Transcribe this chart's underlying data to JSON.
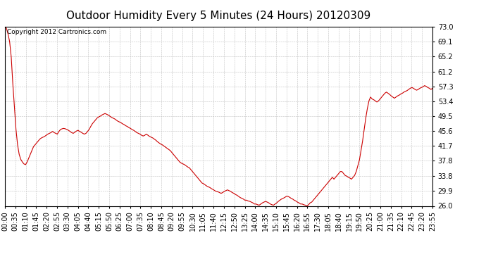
{
  "title": "Outdoor Humidity Every 5 Minutes (24 Hours) 20120309",
  "copyright_text": "Copyright 2012 Cartronics.com",
  "line_color": "#cc0000",
  "background_color": "#ffffff",
  "plot_bg_color": "#ffffff",
  "grid_color": "#c0c0c0",
  "yticks": [
    26.0,
    29.9,
    33.8,
    37.8,
    41.7,
    45.6,
    49.5,
    53.4,
    57.3,
    61.2,
    65.2,
    69.1,
    73.0
  ],
  "ymin": 26.0,
  "ymax": 73.0,
  "title_fontsize": 11,
  "copyright_fontsize": 6.5,
  "tick_label_fontsize": 7,
  "humidity_data": [
    73.0,
    72.5,
    71.0,
    69.0,
    65.0,
    58.0,
    52.0,
    46.0,
    42.0,
    39.5,
    38.2,
    37.5,
    37.0,
    36.8,
    37.5,
    38.5,
    39.5,
    40.5,
    41.5,
    42.0,
    42.5,
    43.0,
    43.5,
    43.8,
    44.0,
    44.2,
    44.5,
    44.8,
    45.0,
    45.2,
    45.5,
    45.2,
    45.0,
    44.8,
    45.5,
    46.0,
    46.2,
    46.3,
    46.2,
    46.0,
    45.8,
    45.5,
    45.2,
    45.0,
    45.3,
    45.6,
    45.8,
    45.5,
    45.3,
    45.0,
    44.8,
    45.0,
    45.5,
    46.0,
    46.8,
    47.5,
    48.0,
    48.5,
    49.0,
    49.3,
    49.5,
    49.8,
    50.0,
    50.2,
    50.0,
    49.8,
    49.5,
    49.2,
    49.0,
    48.8,
    48.5,
    48.2,
    48.0,
    47.8,
    47.5,
    47.3,
    47.0,
    46.8,
    46.5,
    46.3,
    46.0,
    45.8,
    45.5,
    45.2,
    45.0,
    44.8,
    44.5,
    44.3,
    44.5,
    44.8,
    44.5,
    44.2,
    44.0,
    43.8,
    43.5,
    43.2,
    42.8,
    42.5,
    42.2,
    42.0,
    41.7,
    41.4,
    41.1,
    40.8,
    40.5,
    40.0,
    39.5,
    39.0,
    38.5,
    38.0,
    37.5,
    37.2,
    37.0,
    36.8,
    36.5,
    36.2,
    36.0,
    35.5,
    35.0,
    34.5,
    34.0,
    33.5,
    33.0,
    32.5,
    32.0,
    31.8,
    31.5,
    31.2,
    31.0,
    30.8,
    30.5,
    30.3,
    30.0,
    29.8,
    29.7,
    29.5,
    29.3,
    29.5,
    29.8,
    30.0,
    30.2,
    30.0,
    29.8,
    29.5,
    29.3,
    29.0,
    28.8,
    28.5,
    28.2,
    28.0,
    27.8,
    27.5,
    27.5,
    27.3,
    27.2,
    27.0,
    26.8,
    26.5,
    26.5,
    26.3,
    26.2,
    26.5,
    26.8,
    27.0,
    27.2,
    27.0,
    26.8,
    26.5,
    26.3,
    26.2,
    26.5,
    26.8,
    27.2,
    27.5,
    27.8,
    28.0,
    28.2,
    28.5,
    28.5,
    28.3,
    28.0,
    27.8,
    27.5,
    27.3,
    27.0,
    26.8,
    26.5,
    26.5,
    26.3,
    26.2,
    26.0,
    26.3,
    26.8,
    27.0,
    27.5,
    28.0,
    28.5,
    29.0,
    29.5,
    30.0,
    30.5,
    31.0,
    31.5,
    32.0,
    32.5,
    33.0,
    33.5,
    33.0,
    33.5,
    34.0,
    34.5,
    35.0,
    35.0,
    34.5,
    34.0,
    33.8,
    33.5,
    33.3,
    33.0,
    33.5,
    34.0,
    35.0,
    36.5,
    38.0,
    40.5,
    43.0,
    46.0,
    49.0,
    51.5,
    53.5,
    54.5,
    54.0,
    53.8,
    53.5,
    53.2,
    53.5,
    54.0,
    54.5,
    55.0,
    55.5,
    55.8,
    55.5,
    55.2,
    54.8,
    54.5,
    54.2,
    54.5,
    54.8,
    55.0,
    55.3,
    55.5,
    55.8,
    56.0,
    56.2,
    56.5,
    56.8,
    57.0,
    56.8,
    56.5,
    56.3,
    56.5,
    56.8,
    57.0,
    57.2,
    57.5,
    57.3,
    57.0,
    56.8,
    56.5,
    56.8
  ],
  "x_tick_labels": [
    "00:00",
    "00:35",
    "01:10",
    "01:45",
    "02:20",
    "02:55",
    "03:30",
    "04:05",
    "04:40",
    "05:15",
    "05:50",
    "06:25",
    "07:00",
    "07:35",
    "08:10",
    "08:45",
    "09:20",
    "09:55",
    "10:30",
    "11:05",
    "11:40",
    "12:15",
    "12:50",
    "13:25",
    "14:00",
    "14:35",
    "15:10",
    "15:45",
    "16:20",
    "16:55",
    "17:30",
    "18:05",
    "18:40",
    "19:15",
    "19:50",
    "20:25",
    "21:00",
    "21:35",
    "22:10",
    "22:45",
    "23:20",
    "23:55"
  ]
}
